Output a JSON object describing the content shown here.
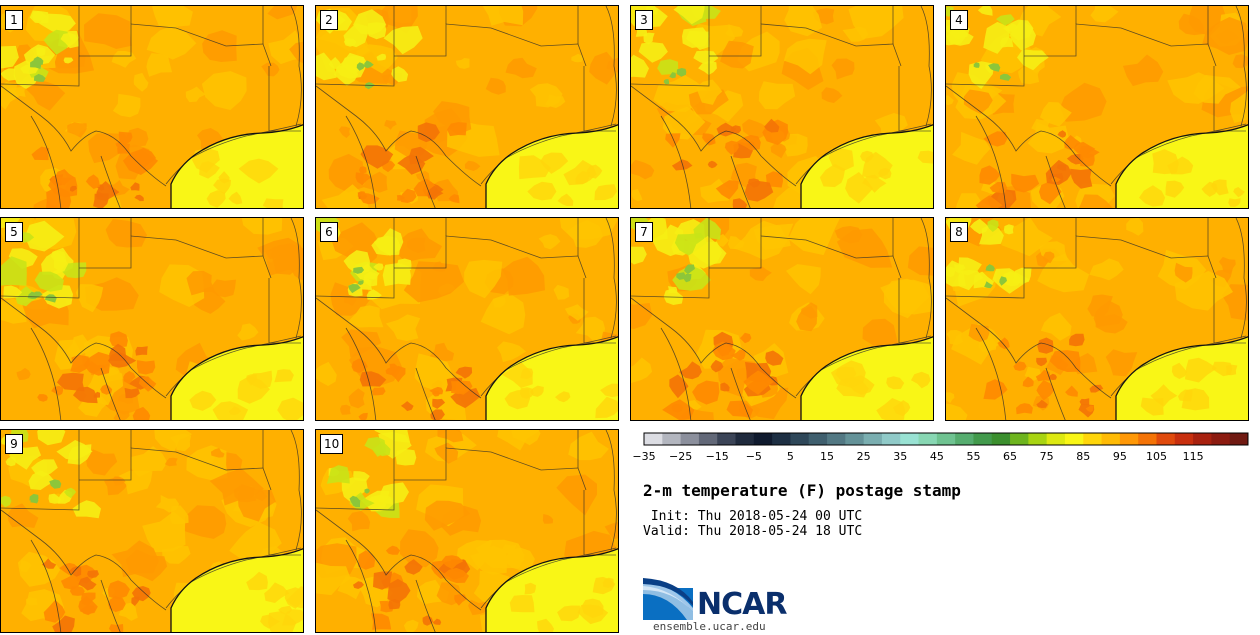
{
  "panels": [
    "1",
    "2",
    "3",
    "4",
    "5",
    "6",
    "7",
    "8",
    "9",
    "10"
  ],
  "colorbar": {
    "colors": [
      "#dcdde3",
      "#b3b6bf",
      "#8b8f9c",
      "#626878",
      "#3b4457",
      "#1f2a3d",
      "#0f1a2e",
      "#1d2f43",
      "#2e4759",
      "#3f5f6e",
      "#527883",
      "#649298",
      "#7aaeb0",
      "#90cac8",
      "#99e2d3",
      "#88d7b3",
      "#6fc391",
      "#56ad6f",
      "#429a4c",
      "#3b8f2e",
      "#6db41e",
      "#a8d412",
      "#dde912",
      "#f9f616",
      "#ffd60b",
      "#ffbb05",
      "#ff9806",
      "#f47306",
      "#e04a0c",
      "#c82f0e",
      "#a8210f",
      "#8c1b10",
      "#701a12"
    ],
    "ticks": [
      "−35",
      "−25",
      "−15",
      "−5",
      "5",
      "15",
      "25",
      "35",
      "45",
      "55",
      "65",
      "75",
      "85",
      "95",
      "105",
      "115"
    ]
  },
  "title": "2-m temperature (F) postage stamp",
  "init_label": " Init: Thu 2018-05-24 00 UTC",
  "valid_label": "Valid: Thu 2018-05-24 18 UTC",
  "logo_text": "NCAR",
  "url": "ensemble.ucar.edu"
}
